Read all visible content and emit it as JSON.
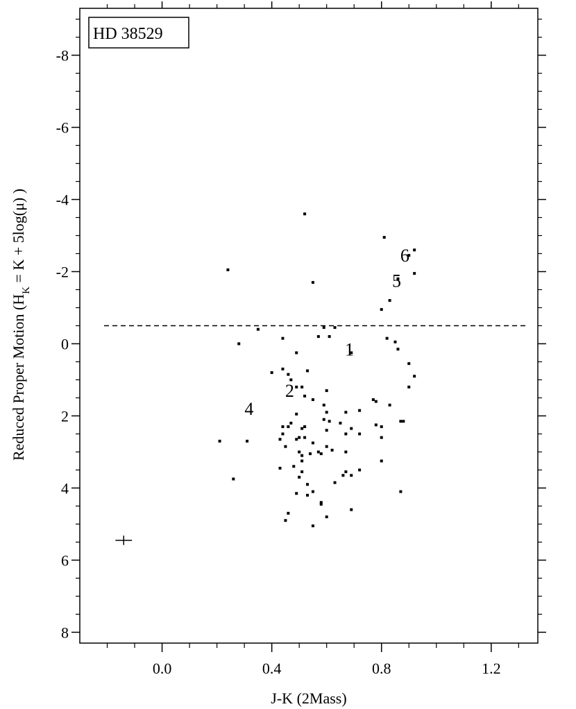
{
  "chart_data": {
    "type": "scatter",
    "legend_box": "HD 38529",
    "xlabel": "J-K (2Mass)",
    "ylabel_parts": {
      "pre": "Reduced Proper Motion (H",
      "sub": "K",
      "post": " = K + 5log(μ) )"
    },
    "xlim": [
      -0.3,
      1.37
    ],
    "ylim": [
      8.3,
      -9.3
    ],
    "y_inverted": true,
    "x_ticks": [
      0.0,
      0.4,
      0.8,
      1.2
    ],
    "x_tick_labels": [
      "0.0",
      "0.4",
      "0.8",
      "1.2"
    ],
    "y_ticks": [
      -8,
      -6,
      -4,
      -2,
      0,
      2,
      4,
      6,
      8
    ],
    "y_tick_labels": [
      "-8",
      "-6",
      "-4",
      "-2",
      "0",
      "2",
      "4",
      "6",
      "8"
    ],
    "reference_line": {
      "style": "dashed",
      "y": -0.5
    },
    "error_cross": {
      "x": -0.14,
      "y": 5.45,
      "xerr": 0.03,
      "yerr": 0.13
    },
    "annotations": [
      {
        "text": "1",
        "x": 0.683,
        "y": 0.15
      },
      {
        "text": "2",
        "x": 0.465,
        "y": 1.3
      },
      {
        "text": "4",
        "x": 0.317,
        "y": 1.8
      },
      {
        "text": "5",
        "x": 0.855,
        "y": -1.75
      },
      {
        "text": "6",
        "x": 0.885,
        "y": -2.45
      }
    ],
    "points": [
      [
        0.52,
        -3.6
      ],
      [
        0.81,
        -2.95
      ],
      [
        0.24,
        -2.05
      ],
      [
        0.92,
        -2.6
      ],
      [
        0.9,
        -2.45
      ],
      [
        0.92,
        -1.95
      ],
      [
        0.86,
        -1.8
      ],
      [
        0.55,
        -1.7
      ],
      [
        0.83,
        -1.2
      ],
      [
        0.8,
        -0.95
      ],
      [
        0.35,
        -0.4
      ],
      [
        0.59,
        -0.45
      ],
      [
        0.63,
        -0.45
      ],
      [
        0.57,
        -0.2
      ],
      [
        0.61,
        -0.2
      ],
      [
        0.44,
        -0.15
      ],
      [
        0.82,
        -0.15
      ],
      [
        0.85,
        -0.05
      ],
      [
        0.28,
        0.0
      ],
      [
        0.86,
        0.15
      ],
      [
        0.49,
        0.25
      ],
      [
        0.69,
        0.25
      ],
      [
        0.9,
        0.55
      ],
      [
        0.44,
        0.7
      ],
      [
        0.53,
        0.75
      ],
      [
        0.4,
        0.8
      ],
      [
        0.46,
        0.85
      ],
      [
        0.92,
        0.9
      ],
      [
        0.47,
        1.0
      ],
      [
        0.49,
        1.2
      ],
      [
        0.51,
        1.2
      ],
      [
        0.9,
        1.2
      ],
      [
        0.6,
        1.3
      ],
      [
        0.52,
        1.45
      ],
      [
        0.55,
        1.55
      ],
      [
        0.77,
        1.55
      ],
      [
        0.78,
        1.6
      ],
      [
        0.59,
        1.7
      ],
      [
        0.83,
        1.7
      ],
      [
        0.6,
        1.9
      ],
      [
        0.67,
        1.9
      ],
      [
        0.72,
        1.85
      ],
      [
        0.49,
        1.95
      ],
      [
        0.59,
        2.1
      ],
      [
        0.61,
        2.15
      ],
      [
        0.47,
        2.2
      ],
      [
        0.65,
        2.2
      ],
      [
        0.87,
        2.15
      ],
      [
        0.88,
        2.15
      ],
      [
        0.78,
        2.25
      ],
      [
        0.44,
        2.3
      ],
      [
        0.46,
        2.3
      ],
      [
        0.52,
        2.3
      ],
      [
        0.8,
        2.3
      ],
      [
        0.51,
        2.35
      ],
      [
        0.69,
        2.35
      ],
      [
        0.6,
        2.4
      ],
      [
        0.44,
        2.5
      ],
      [
        0.67,
        2.5
      ],
      [
        0.72,
        2.5
      ],
      [
        0.5,
        2.6
      ],
      [
        0.52,
        2.6
      ],
      [
        0.8,
        2.6
      ],
      [
        0.43,
        2.65
      ],
      [
        0.49,
        2.65
      ],
      [
        0.21,
        2.7
      ],
      [
        0.31,
        2.7
      ],
      [
        0.55,
        2.75
      ],
      [
        0.6,
        2.85
      ],
      [
        0.45,
        2.85
      ],
      [
        0.62,
        2.95
      ],
      [
        0.5,
        3.0
      ],
      [
        0.57,
        3.0
      ],
      [
        0.67,
        3.0
      ],
      [
        0.54,
        3.05
      ],
      [
        0.58,
        3.05
      ],
      [
        0.51,
        3.1
      ],
      [
        0.51,
        3.25
      ],
      [
        0.8,
        3.25
      ],
      [
        0.48,
        3.4
      ],
      [
        0.43,
        3.45
      ],
      [
        0.72,
        3.5
      ],
      [
        0.51,
        3.55
      ],
      [
        0.67,
        3.55
      ],
      [
        0.66,
        3.65
      ],
      [
        0.69,
        3.65
      ],
      [
        0.5,
        3.7
      ],
      [
        0.26,
        3.75
      ],
      [
        0.63,
        3.85
      ],
      [
        0.53,
        3.9
      ],
      [
        0.55,
        4.1
      ],
      [
        0.49,
        4.15
      ],
      [
        0.87,
        4.1
      ],
      [
        0.53,
        4.2
      ],
      [
        0.58,
        4.4
      ],
      [
        0.58,
        4.45
      ],
      [
        0.69,
        4.6
      ],
      [
        0.46,
        4.7
      ],
      [
        0.6,
        4.8
      ],
      [
        0.45,
        4.9
      ],
      [
        0.55,
        5.05
      ]
    ]
  }
}
